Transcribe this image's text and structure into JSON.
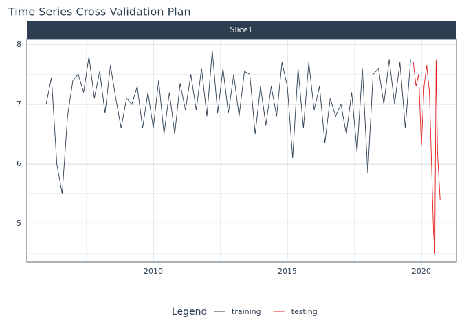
{
  "chart_data": {
    "type": "line",
    "title": "Time Series Cross Validation Plan",
    "facet": "Slice1",
    "legend_title": "Legend",
    "legend_position": "bottom",
    "grid": true,
    "xlim": [
      2005.28,
      2021.31
    ],
    "xticks": [
      2010,
      2015,
      2020
    ],
    "xminor_ticks": [
      2007.5,
      2012.5,
      2017.5
    ],
    "ylim": [
      4.36,
      8.09
    ],
    "yticks": [
      5,
      6,
      7,
      8
    ],
    "yminor_ticks": [
      4.5,
      5.5,
      6.5,
      7.5
    ],
    "series": [
      {
        "name": "training",
        "color": "#2c3e50",
        "x": [
          2006.0,
          2006.2,
          2006.4,
          2006.6,
          2006.8,
          2007.0,
          2007.2,
          2007.4,
          2007.6,
          2007.8,
          2008.0,
          2008.2,
          2008.4,
          2008.6,
          2008.8,
          2009.0,
          2009.2,
          2009.4,
          2009.6,
          2009.8,
          2010.0,
          2010.2,
          2010.4,
          2010.6,
          2010.8,
          2011.0,
          2011.2,
          2011.4,
          2011.6,
          2011.8,
          2012.0,
          2012.2,
          2012.4,
          2012.6,
          2012.8,
          2013.0,
          2013.2,
          2013.4,
          2013.6,
          2013.8,
          2014.0,
          2014.2,
          2014.4,
          2014.6,
          2014.8,
          2015.0,
          2015.2,
          2015.4,
          2015.6,
          2015.8,
          2016.0,
          2016.2,
          2016.4,
          2016.6,
          2016.8,
          2017.0,
          2017.2,
          2017.4,
          2017.6,
          2017.8,
          2018.0,
          2018.2,
          2018.4,
          2018.6,
          2018.8,
          2019.0,
          2019.2,
          2019.4,
          2019.6
        ],
        "values": [
          7.0,
          7.45,
          6.0,
          5.5,
          6.8,
          7.4,
          7.5,
          7.2,
          7.8,
          7.1,
          7.55,
          6.85,
          7.65,
          7.1,
          6.6,
          7.1,
          7.0,
          7.3,
          6.6,
          7.2,
          6.6,
          7.4,
          6.5,
          7.2,
          6.5,
          7.35,
          6.9,
          7.5,
          6.9,
          7.6,
          6.8,
          7.9,
          6.85,
          7.6,
          6.85,
          7.5,
          6.8,
          7.55,
          7.5,
          6.5,
          7.3,
          6.65,
          7.3,
          6.8,
          7.7,
          7.3,
          6.1,
          7.6,
          6.6,
          7.7,
          6.9,
          7.3,
          6.35,
          7.1,
          6.8,
          7.0,
          6.5,
          7.2,
          6.2,
          7.6,
          5.85,
          7.5,
          7.6,
          7.0,
          7.75,
          7.0,
          7.7,
          6.6,
          7.75
        ]
      },
      {
        "name": "testing",
        "color": "#e31a1c",
        "x": [
          2019.7,
          2019.8,
          2019.9,
          2020.0,
          2020.1,
          2020.2,
          2020.3,
          2020.4,
          2020.45,
          2020.5,
          2020.55,
          2020.6,
          2020.7
        ],
        "values": [
          7.7,
          7.3,
          7.5,
          6.3,
          7.3,
          7.65,
          7.2,
          5.7,
          4.9,
          4.5,
          7.75,
          6.2,
          5.4
        ]
      }
    ]
  }
}
